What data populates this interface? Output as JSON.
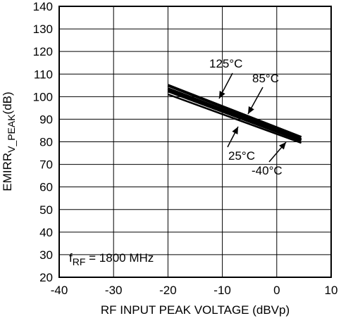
{
  "chart_data": {
    "type": "line",
    "xlabel": "RF INPUT PEAK VOLTAGE (dBVp)",
    "ylabel_main": "EMIRR",
    "ylabel_sub": "V_PEAK",
    "ylabel_unit": "(dB)",
    "xlim": [
      -40,
      10
    ],
    "ylim": [
      20,
      140
    ],
    "x_ticks": [
      -40,
      -30,
      -20,
      -10,
      0,
      10
    ],
    "y_ticks": [
      20,
      30,
      40,
      50,
      60,
      70,
      80,
      90,
      100,
      110,
      120,
      130,
      140
    ],
    "grid": true,
    "series": [
      {
        "name": "125°C",
        "x": [
          -20,
          4.5
        ],
        "y": [
          105,
          82
        ]
      },
      {
        "name": "85°C",
        "x": [
          -20,
          4.5
        ],
        "y": [
          103.5,
          81
        ]
      },
      {
        "name": "25°C",
        "x": [
          -20,
          4.5
        ],
        "y": [
          102.5,
          80.5
        ]
      },
      {
        "name": "-40°C",
        "x": [
          -20,
          4.5
        ],
        "y": [
          101,
          79.5
        ]
      }
    ],
    "condition_main": "f",
    "condition_sub": "RF",
    "condition_rest": " = 1800 MHz"
  }
}
